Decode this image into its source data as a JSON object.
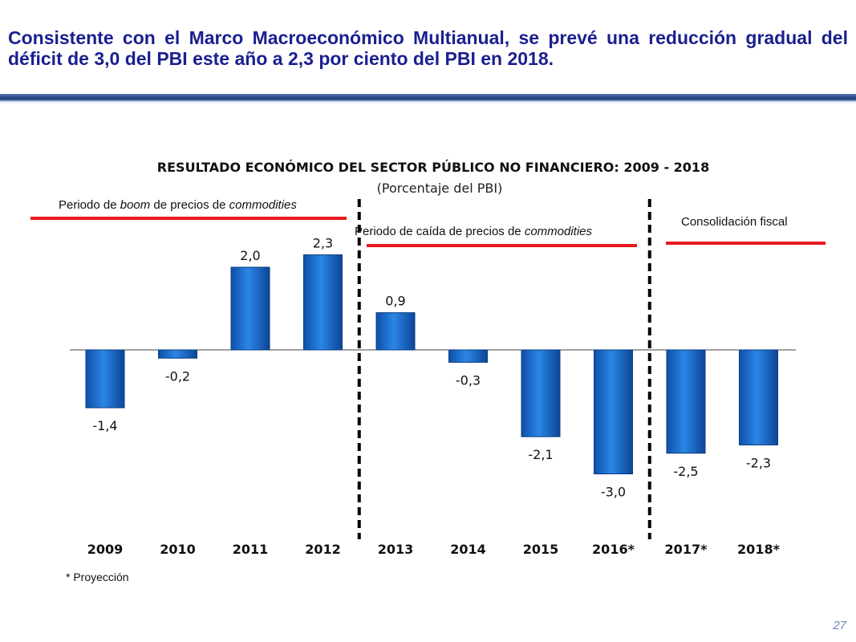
{
  "header": {
    "title": "Consistente con el Marco Macroeconómico Multianual, se prevé una reducción gradual del déficit de 3,0 del PBI este año a 2,3 por ciento del PBI en 2018."
  },
  "footnote": "* Proyección",
  "page_number": "27",
  "chart_data": {
    "type": "bar",
    "title": "RESULTADO ECONÓMICO DEL SECTOR PÚBLICO NO FINANCIERO: 2009 - 2018",
    "subtitle": "(Porcentaje del PBI)",
    "categories": [
      "2009",
      "2010",
      "2011",
      "2012",
      "2013",
      "2014",
      "2015",
      "2016*",
      "2017*",
      "2018*"
    ],
    "values": [
      -1.4,
      -0.2,
      2.0,
      2.3,
      0.9,
      -0.3,
      -2.1,
      -3.0,
      -2.5,
      -2.3
    ],
    "value_labels": [
      "-1,4",
      "-0,2",
      "2,0",
      "2,3",
      "0,9",
      "-0,3",
      "-2,1",
      "-3,0",
      "-2,5",
      "-2,3"
    ],
    "bar_color": "#1f6fd0",
    "period_line_color": "#e8191d",
    "periods": [
      {
        "label_parts": [
          "Periodo de ",
          "boom",
          " de precios de ",
          "commodities"
        ],
        "start_index": 0,
        "end_index": 3
      },
      {
        "label_parts": [
          "Periodo de caída de precios de ",
          "commodities"
        ],
        "start_index": 4,
        "end_index": 7
      },
      {
        "label_parts": [
          "Consolidación fiscal"
        ],
        "start_index": 8,
        "end_index": 9
      }
    ],
    "dividers_after_index": [
      3,
      7
    ],
    "grid": false,
    "legend": "none"
  }
}
